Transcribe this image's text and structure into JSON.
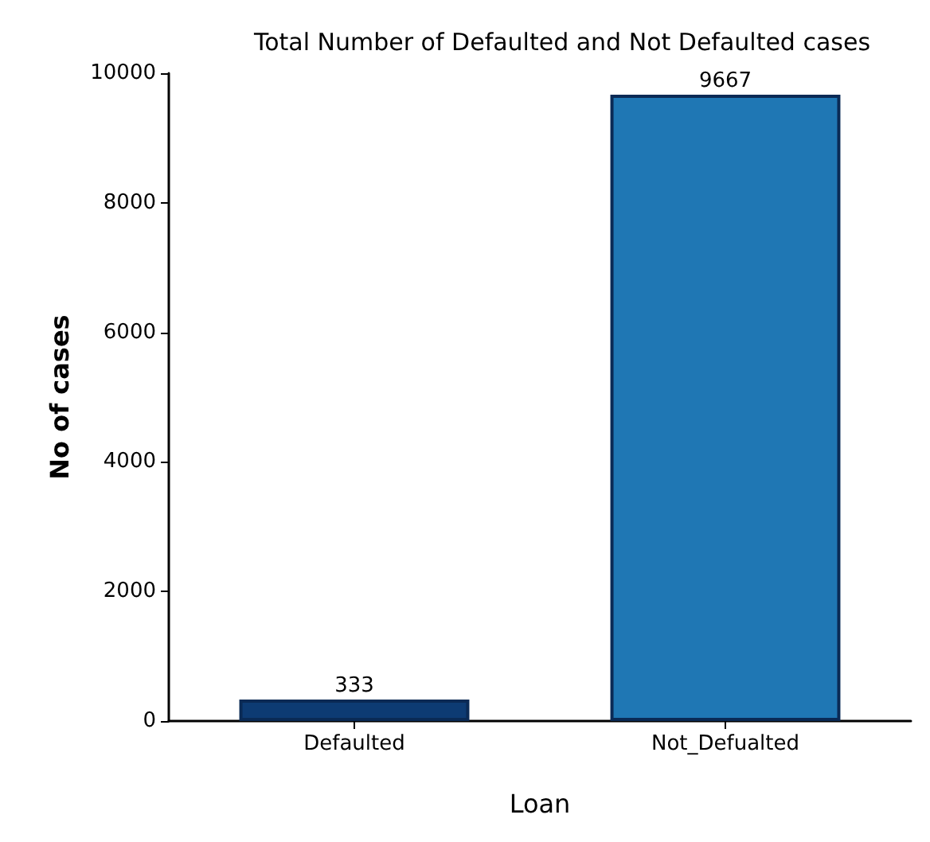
{
  "chart_data": {
    "type": "bar",
    "title": "Total Number of Defaulted and Not Defaulted cases",
    "xlabel": "Loan",
    "ylabel": "No of cases",
    "categories": [
      "Defaulted",
      "Not_Defualted"
    ],
    "values": [
      333,
      9667
    ],
    "colors": [
      "#0d3b73",
      "#1f77b4"
    ],
    "ylim": [
      0,
      10000
    ],
    "yticks": [
      0,
      2000,
      4000,
      6000,
      8000,
      10000
    ],
    "grid": false,
    "data_labels": true
  }
}
